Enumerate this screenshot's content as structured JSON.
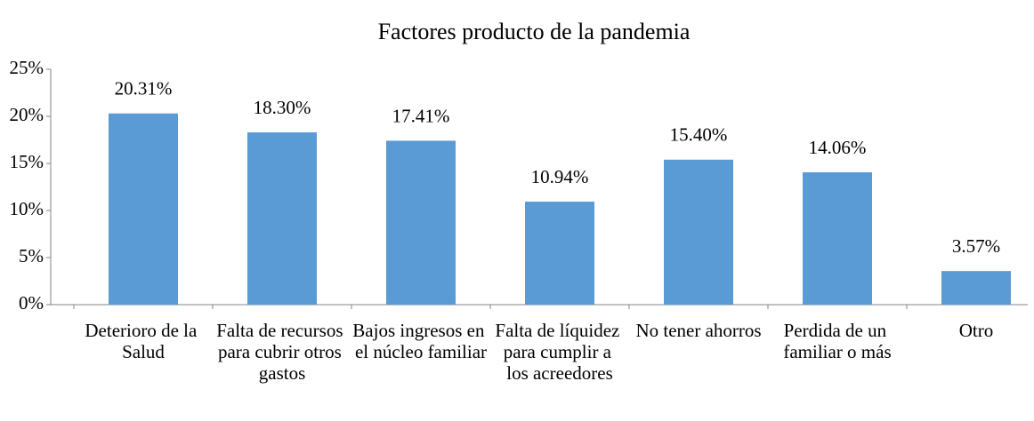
{
  "chart_data": {
    "type": "bar",
    "title": "Factores producto de la pandemia",
    "categories": [
      "Deterioro de la Salud",
      "Falta de recursos para cubrir otros gastos",
      "Bajos ingresos en el núcleo familiar",
      "Falta de líquidez para cumplir a los acreedores",
      "No tener ahorros",
      "Perdida de un familiar o más",
      "Otro"
    ],
    "values": [
      20.31,
      18.3,
      17.41,
      10.94,
      15.4,
      14.06,
      3.57
    ],
    "value_labels": [
      "20.31%",
      "18.30%",
      "17.41%",
      "10.94%",
      "15.40%",
      "14.06%",
      "3.57%"
    ],
    "color": "#5b9bd5",
    "ylim": [
      0,
      25
    ],
    "yticks": [
      {
        "value": 0,
        "label": "0%"
      },
      {
        "value": 5,
        "label": "5%"
      },
      {
        "value": 10,
        "label": "10%"
      },
      {
        "value": 15,
        "label": "15%"
      },
      {
        "value": 20,
        "label": "20%"
      },
      {
        "value": 25,
        "label": "25%"
      }
    ],
    "grid": false
  }
}
